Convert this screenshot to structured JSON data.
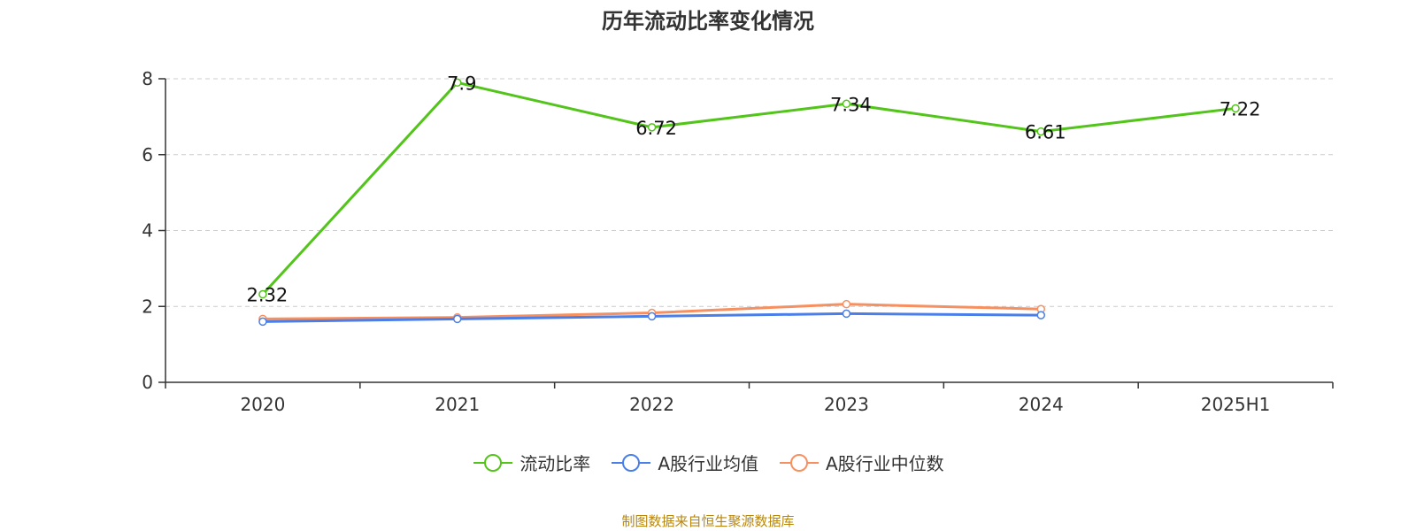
{
  "chart_data": {
    "type": "line",
    "title": "历年流动比率变化情况",
    "categories": [
      "2020",
      "2021",
      "2022",
      "2023",
      "2024",
      "2025H1"
    ],
    "ylim": [
      0,
      8
    ],
    "yticks": [
      0,
      2,
      4,
      6,
      8
    ],
    "grid": true,
    "legend_position": "bottom",
    "series": [
      {
        "name": "流动比率",
        "color": "#52c41a",
        "values": [
          2.32,
          7.9,
          6.72,
          7.34,
          6.61,
          7.22
        ],
        "labels": [
          "2.32",
          "7.9",
          "6.72",
          "7.34",
          "6.61",
          "7.22"
        ]
      },
      {
        "name": "A股行业均值",
        "color": "#4a7ee8",
        "values": [
          1.6,
          1.67,
          1.74,
          1.81,
          1.77,
          null
        ]
      },
      {
        "name": "A股行业中位数",
        "color": "#f79060",
        "values": [
          1.67,
          1.71,
          1.83,
          2.06,
          1.93,
          null
        ]
      }
    ]
  },
  "source": "制图数据来自恒生聚源数据库"
}
